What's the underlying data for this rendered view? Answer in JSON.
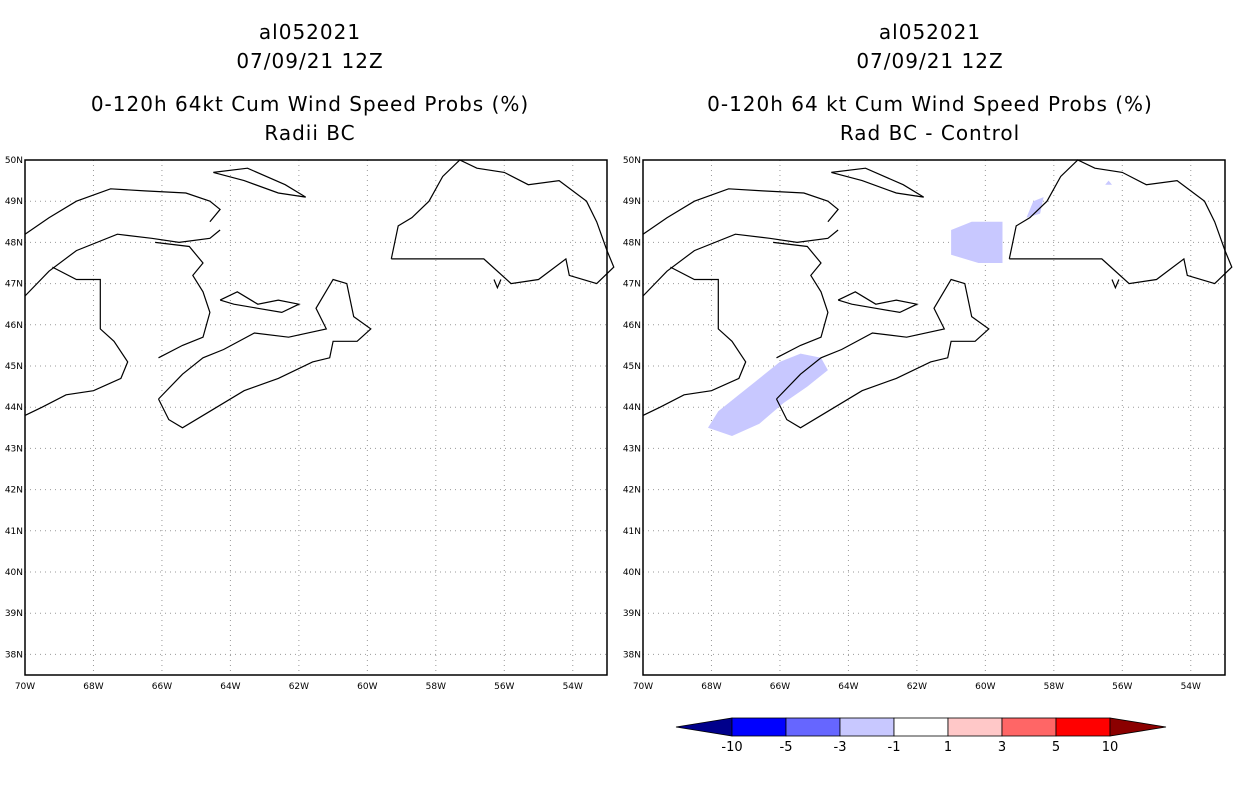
{
  "panels": [
    {
      "storm_id": "al052021",
      "datetime": "07/09/21 12Z",
      "title": "0-120h 64kt Cum Wind Speed Probs (%)",
      "subtitle": "Radii BC"
    },
    {
      "storm_id": "al052021",
      "datetime": "07/09/21 12Z",
      "title": "0-120h 64 kt Cum Wind Speed Probs (%)",
      "subtitle": "Rad BC - Control"
    }
  ],
  "axes": {
    "lon_labels": [
      "70W",
      "68W",
      "66W",
      "64W",
      "62W",
      "60W",
      "58W",
      "56W",
      "54W"
    ],
    "lat_labels": [
      "50N",
      "49N",
      "48N",
      "47N",
      "46N",
      "45N",
      "44N",
      "43N",
      "42N",
      "41N",
      "40N",
      "39N",
      "38N"
    ]
  },
  "colorbar": {
    "labels": [
      "-10",
      "-5",
      "-3",
      "-1",
      "1",
      "3",
      "5",
      "10"
    ],
    "colors": [
      "#00008b",
      "#0000ff",
      "#6666ff",
      "#c8c8ff",
      "#ffffff",
      "#ffc8c8",
      "#ff6666",
      "#ff0000",
      "#8b0000"
    ]
  },
  "shade_color": "#c8c8ff",
  "map_line_color": "#000000",
  "grid_color": "#999999"
}
